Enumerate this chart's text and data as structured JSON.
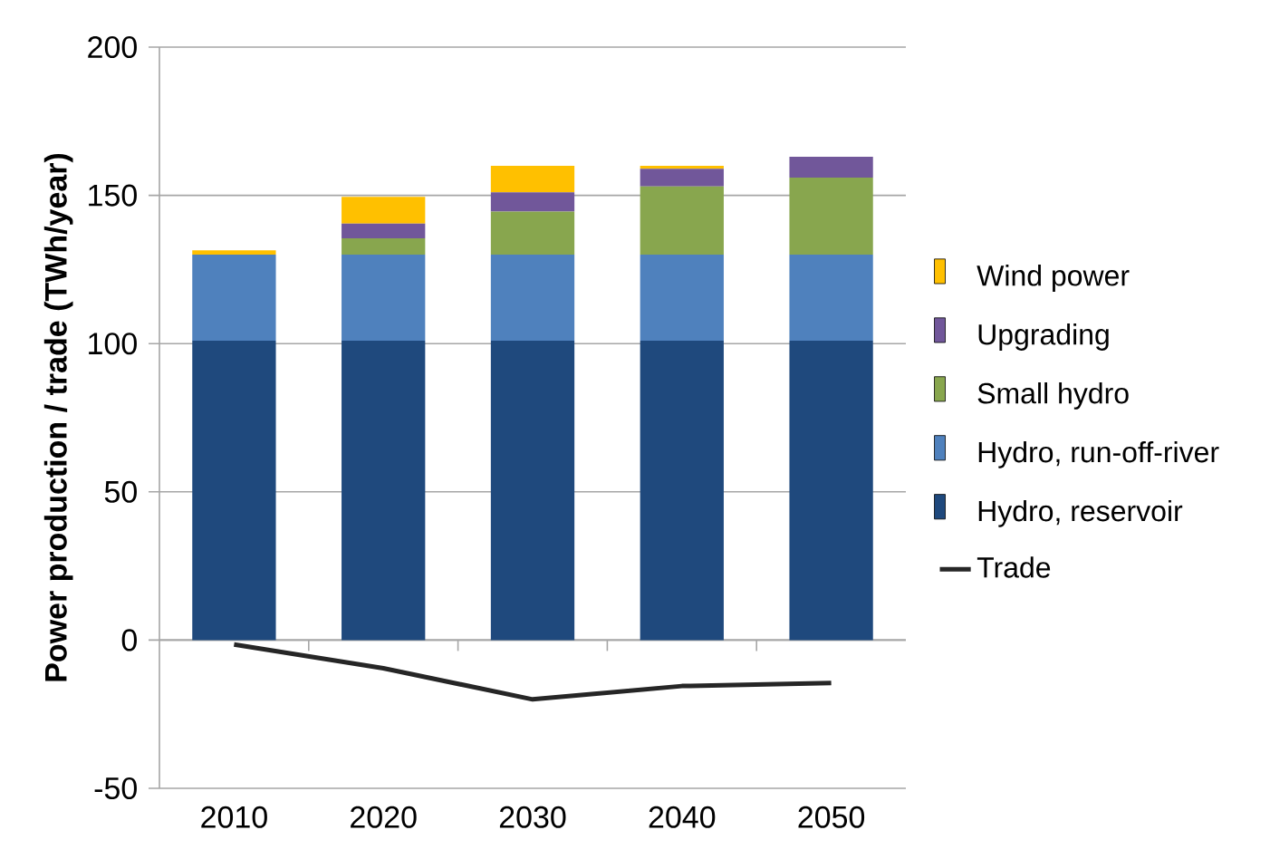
{
  "chart_data": {
    "type": "bar",
    "stacked": true,
    "ylabel": "Power production  / trade (TWh/year)",
    "categories": [
      "2010",
      "2020",
      "2030",
      "2040",
      "2050"
    ],
    "series": [
      {
        "name": "Hydro, reservoir",
        "color": "#1f497d",
        "values": [
          101,
          101,
          101,
          101,
          101
        ]
      },
      {
        "name": "Hydro, run-off-river",
        "color": "#4f81bd",
        "values": [
          29,
          29,
          29,
          29,
          29
        ]
      },
      {
        "name": "Small hydro",
        "color": "#88a64e",
        "values": [
          0,
          5.5,
          14.5,
          23,
          26
        ]
      },
      {
        "name": "Upgrading",
        "color": "#71579a",
        "values": [
          0,
          5,
          6.5,
          6,
          7
        ]
      },
      {
        "name": "Wind power",
        "color": "#ffc000",
        "values": [
          1.5,
          9,
          9,
          1,
          0
        ]
      },
      {
        "name": "Trade",
        "type": "line",
        "color": "#262626",
        "values": [
          -1.5,
          -9.5,
          -20,
          -15.5,
          -14.5
        ]
      }
    ],
    "ylim": [
      -50,
      200
    ],
    "yticks": [
      -50,
      0,
      50,
      100,
      150,
      200
    ],
    "grid": "y",
    "legend": "right"
  }
}
